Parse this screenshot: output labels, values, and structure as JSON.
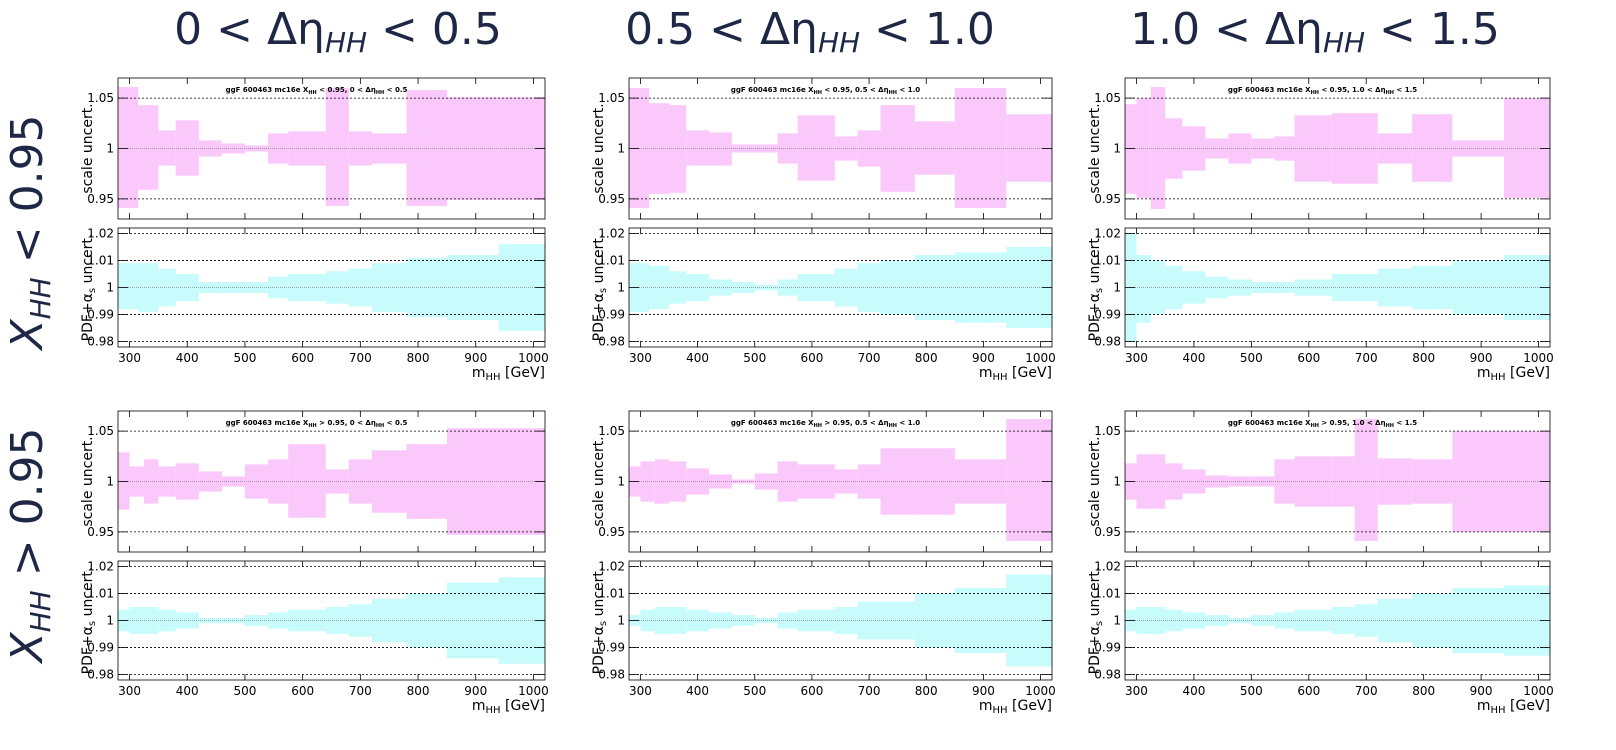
{
  "column_headers": [
    "0 < Δη",
    "0.5 < Δη",
    "1.0 < Δη"
  ],
  "column_header_parts": [
    {
      "lo": "0",
      "hi": "0.5"
    },
    {
      "lo": "0.5",
      "hi": "1.0"
    },
    {
      "lo": "1.0",
      "hi": "1.5"
    }
  ],
  "row_headers": [
    {
      "sym": "X",
      "sub": "HH",
      "op": "<",
      "val": "0.95"
    },
    {
      "sym": "X",
      "sub": "HH",
      "op": ">",
      "val": "0.95"
    }
  ],
  "labels": {
    "scale_ylabel": "scale uncert.",
    "pdf_ylabel": "PDF+α",
    "pdf_ylabel_sub": "s",
    "pdf_ylabel_tail": " uncert.",
    "xlabel": "m",
    "xlabel_sub": "HH",
    "xlabel_unit": " [GeV]"
  },
  "colors": {
    "scale_band": "#fbc8fb",
    "pdf_band": "#c8fbfb",
    "title_text": "#1e2746"
  },
  "chart_data": [
    {
      "type": "area",
      "title": "ggF 600463 mc16e X_HH < 0.95, 0 < Δη_HH < 0.5",
      "title_parts": {
        "pre": "ggF 600463 mc16e X",
        "sub1": "HH",
        "mid": " < 0.95, 0 < Δη",
        "sub2": "HH",
        "post": " < 0.5"
      },
      "bin_edges": [
        280,
        315,
        350,
        380,
        420,
        460,
        500,
        540,
        575,
        640,
        680,
        720,
        780,
        850,
        940,
        1020
      ],
      "xlim": [
        280,
        1020
      ],
      "xticks": [
        300,
        400,
        500,
        600,
        700,
        800,
        900,
        1000
      ],
      "scale": {
        "ylim": [
          0.93,
          1.07
        ],
        "yticks": [
          0.95,
          1,
          1.05
        ],
        "ytick_labels": [
          "0.95",
          "1",
          "1.05"
        ],
        "up": [
          1.061,
          1.043,
          1.018,
          1.028,
          1.008,
          1.005,
          1.003,
          1.015,
          1.017,
          1.06,
          1.017,
          1.015,
          1.058,
          1.051,
          1.051
        ],
        "down": [
          0.941,
          0.959,
          0.983,
          0.973,
          0.992,
          0.995,
          0.997,
          0.985,
          0.983,
          0.943,
          0.983,
          0.985,
          0.943,
          0.949,
          0.949
        ]
      },
      "pdf": {
        "ylim": [
          0.978,
          1.022
        ],
        "yticks": [
          0.98,
          0.99,
          1,
          1.01,
          1.02
        ],
        "ytick_labels": [
          "0.98",
          "0.99",
          "1",
          "1.01",
          "1.02"
        ],
        "up": [
          1.009,
          1.009,
          1.007,
          1.005,
          1.002,
          1.002,
          1.002,
          1.004,
          1.005,
          1.006,
          1.007,
          1.009,
          1.011,
          1.012,
          1.016
        ],
        "down": [
          0.992,
          0.991,
          0.993,
          0.995,
          0.998,
          0.998,
          0.998,
          0.996,
          0.995,
          0.994,
          0.993,
          0.991,
          0.989,
          0.988,
          0.984
        ]
      }
    },
    {
      "type": "area",
      "title": "ggF 600463 mc16e X_HH < 0.95, 0.5 < Δη_HH < 1.0",
      "title_parts": {
        "pre": "ggF 600463 mc16e X",
        "sub1": "HH",
        "mid": " < 0.95, 0.5 < Δη",
        "sub2": "HH",
        "post": " < 1.0"
      },
      "bin_edges": [
        280,
        315,
        350,
        380,
        420,
        460,
        500,
        540,
        575,
        640,
        680,
        720,
        780,
        850,
        940,
        1020
      ],
      "xlim": [
        280,
        1020
      ],
      "xticks": [
        300,
        400,
        500,
        600,
        700,
        800,
        900,
        1000
      ],
      "scale": {
        "ylim": [
          0.93,
          1.07
        ],
        "yticks": [
          0.95,
          1,
          1.05
        ],
        "ytick_labels": [
          "0.95",
          "1",
          "1.05"
        ],
        "up": [
          1.06,
          1.045,
          1.043,
          1.018,
          1.016,
          1.004,
          1.004,
          1.015,
          1.033,
          1.012,
          1.018,
          1.043,
          1.027,
          1.06,
          1.034
        ],
        "down": [
          0.941,
          0.955,
          0.956,
          0.983,
          0.983,
          0.996,
          0.996,
          0.985,
          0.968,
          0.988,
          0.982,
          0.957,
          0.974,
          0.941,
          0.967
        ]
      },
      "pdf": {
        "ylim": [
          0.978,
          1.022
        ],
        "yticks": [
          0.98,
          0.99,
          1,
          1.01,
          1.02
        ],
        "ytick_labels": [
          "0.98",
          "0.99",
          "1",
          "1.01",
          "1.02"
        ],
        "up": [
          1.009,
          1.008,
          1.006,
          1.005,
          1.003,
          1.002,
          1.001,
          1.003,
          1.005,
          1.007,
          1.009,
          1.01,
          1.012,
          1.013,
          1.015
        ],
        "down": [
          0.991,
          0.992,
          0.994,
          0.995,
          0.997,
          0.998,
          0.999,
          0.997,
          0.995,
          0.993,
          0.991,
          0.99,
          0.988,
          0.987,
          0.985
        ]
      }
    },
    {
      "type": "area",
      "title": "ggF 600463 mc16e X_HH < 0.95, 1.0 < Δη_HH < 1.5",
      "title_parts": {
        "pre": "ggF 600463 mc16e X",
        "sub1": "HH",
        "mid": " < 0.95, 1.0 < Δη",
        "sub2": "HH",
        "post": " < 1.5"
      },
      "bin_edges": [
        280,
        300,
        325,
        350,
        380,
        420,
        460,
        500,
        540,
        575,
        640,
        720,
        780,
        850,
        940,
        1020
      ],
      "xlim": [
        280,
        1020
      ],
      "xticks": [
        300,
        400,
        500,
        600,
        700,
        800,
        900,
        1000
      ],
      "scale": {
        "ylim": [
          0.93,
          1.07
        ],
        "yticks": [
          0.95,
          1,
          1.05
        ],
        "ytick_labels": [
          "0.95",
          "1",
          "1.05"
        ],
        "up": [
          1.044,
          1.05,
          1.061,
          1.03,
          1.022,
          1.01,
          1.015,
          1.01,
          1.012,
          1.033,
          1.035,
          1.015,
          1.034,
          1.008,
          1.05
        ],
        "down": [
          0.955,
          0.951,
          0.94,
          0.97,
          0.978,
          0.99,
          0.985,
          0.99,
          0.988,
          0.967,
          0.965,
          0.985,
          0.967,
          0.992,
          0.951
        ]
      },
      "pdf": {
        "ylim": [
          0.978,
          1.022
        ],
        "yticks": [
          0.98,
          0.99,
          1,
          1.01,
          1.02
        ],
        "ytick_labels": [
          "0.98",
          "0.99",
          "1",
          "1.01",
          "1.02"
        ],
        "up": [
          1.02,
          1.012,
          1.01,
          1.008,
          1.006,
          1.004,
          1.003,
          1.002,
          1.002,
          1.003,
          1.005,
          1.007,
          1.008,
          1.01,
          1.012
        ],
        "down": [
          0.98,
          0.987,
          0.99,
          0.992,
          0.994,
          0.996,
          0.997,
          0.998,
          0.998,
          0.997,
          0.995,
          0.993,
          0.992,
          0.99,
          0.988
        ]
      }
    },
    {
      "type": "area",
      "title": "ggF 600463 mc16e X_HH > 0.95, 0 < Δη_HH < 0.5",
      "title_parts": {
        "pre": "ggF 600463 mc16e X",
        "sub1": "HH",
        "mid": " > 0.95, 0 < Δη",
        "sub2": "HH",
        "post": " < 0.5"
      },
      "bin_edges": [
        280,
        300,
        325,
        350,
        380,
        420,
        460,
        500,
        540,
        575,
        640,
        680,
        720,
        780,
        850,
        940,
        1020
      ],
      "xlim": [
        280,
        1020
      ],
      "xticks": [
        300,
        400,
        500,
        600,
        700,
        800,
        900,
        1000
      ],
      "scale": {
        "ylim": [
          0.93,
          1.07
        ],
        "yticks": [
          0.95,
          1,
          1.05
        ],
        "ytick_labels": [
          "0.95",
          "1",
          "1.05"
        ],
        "up": [
          1.029,
          1.015,
          1.022,
          1.015,
          1.018,
          1.01,
          1.005,
          1.017,
          1.022,
          1.037,
          1.012,
          1.022,
          1.031,
          1.037,
          1.053,
          1.053
        ],
        "down": [
          0.972,
          0.985,
          0.978,
          0.985,
          0.982,
          0.99,
          0.995,
          0.983,
          0.978,
          0.964,
          0.988,
          0.978,
          0.969,
          0.963,
          0.947,
          0.947
        ]
      },
      "pdf": {
        "ylim": [
          0.978,
          1.022
        ],
        "yticks": [
          0.98,
          0.99,
          1,
          1.01,
          1.02
        ],
        "ytick_labels": [
          "0.98",
          "0.99",
          "1",
          "1.01",
          "1.02"
        ],
        "up": [
          1.004,
          1.005,
          1.005,
          1.004,
          1.003,
          1.001,
          1.001,
          1.002,
          1.003,
          1.004,
          1.005,
          1.006,
          1.008,
          1.01,
          1.014,
          1.016
        ],
        "down": [
          0.996,
          0.995,
          0.995,
          0.996,
          0.997,
          0.999,
          0.999,
          0.998,
          0.997,
          0.996,
          0.995,
          0.994,
          0.992,
          0.99,
          0.986,
          0.984
        ]
      }
    },
    {
      "type": "area",
      "title": "ggF 600463 mc16e X_HH > 0.95, 0.5 < Δη_HH < 1.0",
      "title_parts": {
        "pre": "ggF 600463 mc16e X",
        "sub1": "HH",
        "mid": " > 0.95, 0.5 < Δη",
        "sub2": "HH",
        "post": " < 1.0"
      },
      "bin_edges": [
        280,
        300,
        325,
        350,
        380,
        420,
        460,
        500,
        540,
        575,
        640,
        680,
        720,
        780,
        850,
        940,
        1020
      ],
      "xlim": [
        280,
        1020
      ],
      "xticks": [
        300,
        400,
        500,
        600,
        700,
        800,
        900,
        1000
      ],
      "scale": {
        "ylim": [
          0.93,
          1.07
        ],
        "yticks": [
          0.95,
          1,
          1.05
        ],
        "ytick_labels": [
          "0.95",
          "1",
          "1.05"
        ],
        "up": [
          1.015,
          1.02,
          1.022,
          1.02,
          1.013,
          1.007,
          1.002,
          1.008,
          1.02,
          1.017,
          1.012,
          1.017,
          1.033,
          1.033,
          1.022,
          1.062
        ],
        "down": [
          0.985,
          0.98,
          0.978,
          0.98,
          0.987,
          0.993,
          0.998,
          0.992,
          0.98,
          0.983,
          0.988,
          0.983,
          0.967,
          0.967,
          0.978,
          0.941
        ]
      },
      "pdf": {
        "ylim": [
          0.978,
          1.022
        ],
        "yticks": [
          0.98,
          0.99,
          1,
          1.01,
          1.02
        ],
        "ytick_labels": [
          "0.98",
          "0.99",
          "1",
          "1.01",
          "1.02"
        ],
        "up": [
          1.002,
          1.004,
          1.005,
          1.005,
          1.004,
          1.003,
          1.002,
          1.001,
          1.003,
          1.004,
          1.005,
          1.007,
          1.007,
          1.01,
          1.012,
          1.017
        ],
        "down": [
          0.998,
          0.996,
          0.995,
          0.995,
          0.996,
          0.997,
          0.998,
          0.999,
          0.997,
          0.996,
          0.995,
          0.993,
          0.993,
          0.99,
          0.988,
          0.983
        ]
      }
    },
    {
      "type": "area",
      "title": "ggF 600463 mc16e X_HH > 0.95, 1.0 < Δη_HH < 1.5",
      "title_parts": {
        "pre": "ggF 600463 mc16e X",
        "sub1": "HH",
        "mid": " > 0.95, 1.0 < Δη",
        "sub2": "HH",
        "post": " < 1.5"
      },
      "bin_edges": [
        280,
        300,
        350,
        380,
        420,
        460,
        500,
        540,
        575,
        640,
        680,
        720,
        780,
        850,
        940,
        1020
      ],
      "xlim": [
        280,
        1020
      ],
      "xticks": [
        300,
        400,
        500,
        600,
        700,
        800,
        900,
        1000
      ],
      "scale": {
        "ylim": [
          0.93,
          1.07
        ],
        "yticks": [
          0.95,
          1,
          1.05
        ],
        "ytick_labels": [
          "0.95",
          "1",
          "1.05"
        ],
        "up": [
          1.018,
          1.027,
          1.018,
          1.012,
          1.006,
          1.005,
          1.005,
          1.022,
          1.025,
          1.025,
          1.062,
          1.023,
          1.022,
          1.05,
          1.05
        ],
        "down": [
          0.982,
          0.973,
          0.982,
          0.988,
          0.994,
          0.995,
          0.995,
          0.978,
          0.975,
          0.975,
          0.941,
          0.977,
          0.978,
          0.95,
          0.95
        ]
      },
      "pdf": {
        "ylim": [
          0.978,
          1.022
        ],
        "yticks": [
          0.98,
          0.99,
          1,
          1.01,
          1.02
        ],
        "ytick_labels": [
          "0.98",
          "0.99",
          "1",
          "1.01",
          "1.02"
        ],
        "up": [
          1.004,
          1.005,
          1.004,
          1.003,
          1.002,
          1.001,
          1.002,
          1.003,
          1.004,
          1.005,
          1.006,
          1.008,
          1.01,
          1.012,
          1.013
        ],
        "down": [
          0.996,
          0.995,
          0.996,
          0.997,
          0.998,
          0.999,
          0.998,
          0.997,
          0.996,
          0.995,
          0.994,
          0.992,
          0.99,
          0.988,
          0.987
        ]
      }
    }
  ]
}
